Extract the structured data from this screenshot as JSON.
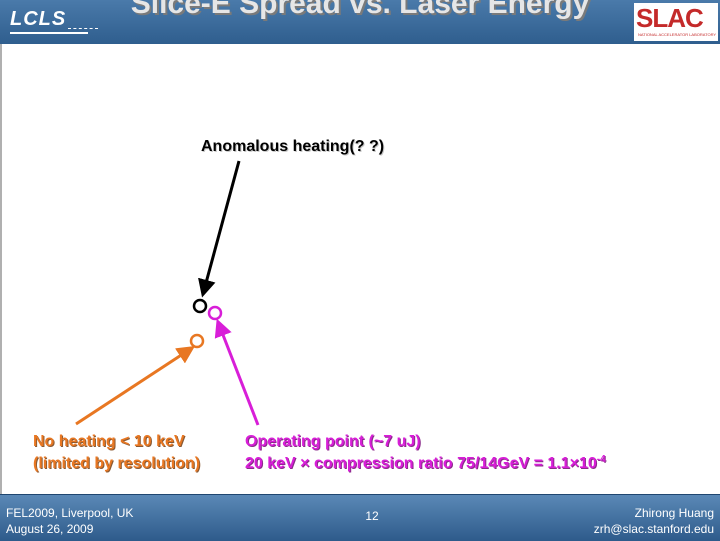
{
  "slide": {
    "title": "Slice-E Spread vs. Laser Energy",
    "logo_left": "LCLS",
    "logo_right": "SLAC",
    "logo_right_sub": "NATIONAL ACCELERATOR LABORATORY"
  },
  "annotations": {
    "anomalous": "Anomalous heating(? ?)",
    "no_heating_line1": "No heating < 10 keV",
    "no_heating_line2": "(limited by resolution)",
    "operating_line1": "Operating point (~7 uJ)",
    "operating_line2_a": "20 keV × compression ratio 75/14GeV = 1.1×10",
    "operating_line2_exp": "-4"
  },
  "footer": {
    "conference": "FEL2009, Liverpool, UK",
    "date": "August 26, 2009",
    "page": "12",
    "author": "Zhirong Huang",
    "email": "zrh@slac.stanford.edu"
  },
  "colors": {
    "black_marker": "#000000",
    "orange_marker": "#e87722",
    "magenta_marker": "#d81ed8"
  }
}
